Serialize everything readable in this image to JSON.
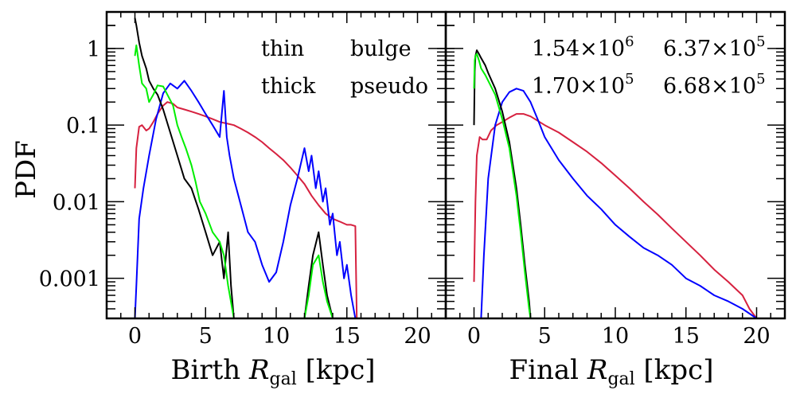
{
  "figure": {
    "ylabel": "PDF",
    "yscale": "log",
    "ylim": [
      0.0003,
      3.0
    ],
    "yticks": [
      1,
      0.1,
      0.01,
      0.001
    ],
    "ytick_labels": [
      "1",
      "0.1",
      "0.01",
      "0.001"
    ],
    "xlim": [
      -2,
      22
    ],
    "xticks": [
      0,
      5,
      10,
      15,
      20
    ],
    "xtick_labels": [
      "0",
      "5",
      "10",
      "15",
      "20"
    ]
  },
  "colors": {
    "thin": "#d6213f",
    "thick": "#0000ff",
    "bulge": "#000000",
    "pseudo": "#00ee00"
  },
  "chart_data": [
    {
      "type": "line",
      "panel": "left",
      "xlabel_main": "Birth ",
      "xlabel_var": "R",
      "xlabel_sub": "gal",
      "xlabel_unit": " [kpc]",
      "xlim": [
        -2,
        22
      ],
      "ylim": [
        0.0003,
        3.0
      ],
      "yscale": "log",
      "legend": [
        {
          "name": "thin",
          "color_key": "thin",
          "pos": "top-left"
        },
        {
          "name": "bulge",
          "color_key": "bulge",
          "pos": "top-right"
        },
        {
          "name": "thick",
          "color_key": "thick",
          "pos": "bottom-left"
        },
        {
          "name": "pseudo",
          "color_key": "pseudo",
          "pos": "bottom-right"
        }
      ],
      "series": [
        {
          "name": "thin",
          "color_key": "thin",
          "x": [
            0.0,
            0.1,
            0.3,
            0.5,
            0.8,
            1.0,
            1.3,
            1.6,
            2.0,
            2.3,
            2.7,
            3.0,
            3.5,
            4.0,
            4.5,
            5.0,
            5.5,
            6.0,
            6.5,
            7.0,
            7.5,
            8.0,
            8.5,
            9.0,
            9.5,
            10.0,
            10.5,
            11.0,
            11.5,
            12.0,
            12.5,
            13.0,
            13.5,
            14.0,
            14.5,
            15.0,
            15.3,
            15.6,
            15.7
          ],
          "y": [
            0.015,
            0.05,
            0.095,
            0.1,
            0.085,
            0.09,
            0.11,
            0.14,
            0.18,
            0.2,
            0.19,
            0.17,
            0.16,
            0.15,
            0.14,
            0.13,
            0.12,
            0.11,
            0.105,
            0.1,
            0.09,
            0.08,
            0.07,
            0.06,
            0.05,
            0.042,
            0.035,
            0.028,
            0.022,
            0.017,
            0.012,
            0.009,
            0.007,
            0.006,
            0.0055,
            0.005,
            0.005,
            0.0048,
            0.0003
          ]
        },
        {
          "name": "thick",
          "color_key": "thick",
          "x": [
            0.0,
            0.1,
            0.3,
            0.6,
            1.0,
            1.5,
            2.0,
            2.5,
            3.0,
            3.5,
            4.0,
            4.5,
            5.0,
            5.5,
            6.0,
            6.3,
            6.5,
            6.7,
            7.0,
            7.5,
            8.0,
            8.5,
            9.0,
            9.5,
            10.0,
            10.5,
            11.0,
            11.5,
            12.0,
            12.3,
            12.5,
            12.8,
            13.0,
            13.3,
            13.5,
            13.8,
            14.0,
            14.3,
            14.5,
            14.8,
            15.0,
            15.3,
            15.6
          ],
          "y": [
            0.0003,
            0.0008,
            0.006,
            0.015,
            0.04,
            0.12,
            0.26,
            0.35,
            0.3,
            0.38,
            0.28,
            0.2,
            0.14,
            0.1,
            0.07,
            0.28,
            0.07,
            0.04,
            0.02,
            0.009,
            0.004,
            0.003,
            0.0015,
            0.0009,
            0.0012,
            0.003,
            0.009,
            0.02,
            0.05,
            0.025,
            0.04,
            0.015,
            0.025,
            0.01,
            0.015,
            0.005,
            0.007,
            0.002,
            0.003,
            0.001,
            0.0015,
            0.0006,
            0.0003
          ]
        },
        {
          "name": "bulge",
          "color_key": "bulge",
          "x": [
            0.0,
            0.1,
            0.3,
            0.5,
            0.8,
            1.0,
            1.3,
            1.6,
            2.0,
            2.5,
            3.0,
            3.5,
            4.0,
            4.5,
            5.0,
            5.5,
            6.0,
            6.3,
            6.6,
            6.8,
            7.0,
            12.0,
            12.3,
            12.6,
            13.0,
            13.3,
            13.6,
            14.0
          ],
          "y": [
            2.5,
            2.0,
            1.2,
            0.8,
            0.55,
            0.38,
            0.3,
            0.25,
            0.16,
            0.08,
            0.04,
            0.02,
            0.015,
            0.008,
            0.004,
            0.002,
            0.003,
            0.001,
            0.004,
            0.0008,
            0.0003,
            0.0003,
            0.0008,
            0.002,
            0.004,
            0.0015,
            0.0006,
            0.0003
          ]
        },
        {
          "name": "pseudo",
          "color_key": "pseudo",
          "x": [
            0.0,
            0.1,
            0.3,
            0.5,
            0.8,
            1.0,
            1.3,
            1.6,
            2.0,
            2.3,
            2.7,
            3.0,
            3.3,
            3.6,
            4.0,
            4.3,
            4.6,
            5.0,
            5.5,
            6.0,
            6.3,
            6.6,
            7.0,
            12.0,
            12.3,
            12.6,
            13.0,
            13.3,
            13.6,
            14.0
          ],
          "y": [
            0.8,
            1.1,
            0.6,
            0.35,
            0.3,
            0.2,
            0.25,
            0.33,
            0.32,
            0.25,
            0.18,
            0.1,
            0.07,
            0.05,
            0.03,
            0.018,
            0.01,
            0.007,
            0.004,
            0.003,
            0.002,
            0.0008,
            0.0003,
            0.0003,
            0.0006,
            0.0015,
            0.002,
            0.0009,
            0.0005,
            0.0003
          ]
        }
      ]
    },
    {
      "type": "line",
      "panel": "right",
      "xlabel_main": "Final ",
      "xlabel_var": "R",
      "xlabel_sub": "gal",
      "xlabel_unit": " [kpc]",
      "xlim": [
        -2,
        22
      ],
      "ylim": [
        0.0003,
        3.0
      ],
      "yscale": "log",
      "legend": [
        {
          "mant": "1.54×10",
          "exp": "6",
          "color_key": "thin",
          "pos": "top-left"
        },
        {
          "mant": "6.37×10",
          "exp": "5",
          "color_key": "bulge",
          "pos": "top-right"
        },
        {
          "mant": "1.70×10",
          "exp": "5",
          "color_key": "thick",
          "pos": "bottom-left"
        },
        {
          "mant": "6.68×10",
          "exp": "5",
          "color_key": "pseudo",
          "pos": "bottom-right"
        }
      ],
      "series": [
        {
          "name": "thin",
          "color_key": "thin",
          "x": [
            0.0,
            0.1,
            0.2,
            0.4,
            0.6,
            0.9,
            1.2,
            1.6,
            2.0,
            2.5,
            3.0,
            3.5,
            4.0,
            5.0,
            6.0,
            7.0,
            8.0,
            9.0,
            10.0,
            11.0,
            12.0,
            13.0,
            14.0,
            15.0,
            16.0,
            17.0,
            18.0,
            19.0,
            19.5,
            20.0
          ],
          "y": [
            0.0009,
            0.01,
            0.04,
            0.07,
            0.065,
            0.065,
            0.085,
            0.1,
            0.11,
            0.125,
            0.14,
            0.14,
            0.13,
            0.1,
            0.08,
            0.06,
            0.045,
            0.032,
            0.022,
            0.015,
            0.01,
            0.0068,
            0.0045,
            0.003,
            0.002,
            0.0013,
            0.0009,
            0.0006,
            0.0004,
            0.0003
          ]
        },
        {
          "name": "thick",
          "color_key": "thick",
          "x": [
            0.5,
            0.7,
            1.0,
            1.5,
            2.0,
            2.5,
            3.0,
            3.5,
            4.0,
            4.5,
            5.0,
            6.0,
            7.0,
            8.0,
            9.0,
            10.0,
            11.0,
            12.0,
            13.0,
            14.0,
            15.0,
            16.0,
            17.0,
            18.0,
            19.0,
            20.0
          ],
          "y": [
            0.0003,
            0.002,
            0.02,
            0.1,
            0.2,
            0.27,
            0.3,
            0.28,
            0.2,
            0.12,
            0.07,
            0.035,
            0.02,
            0.012,
            0.008,
            0.005,
            0.0035,
            0.0025,
            0.002,
            0.0015,
            0.001,
            0.0008,
            0.0006,
            0.0005,
            0.0004,
            0.0003
          ]
        },
        {
          "name": "bulge",
          "color_key": "bulge",
          "x": [
            0.0,
            0.05,
            0.1,
            0.2,
            0.35,
            0.5,
            0.8,
            1.0,
            1.5,
            2.0,
            2.5,
            3.0,
            3.3,
            3.6,
            3.9,
            4.0
          ],
          "y": [
            0.1,
            0.5,
            0.8,
            0.95,
            0.85,
            0.75,
            0.6,
            0.48,
            0.3,
            0.15,
            0.06,
            0.015,
            0.005,
            0.0015,
            0.0005,
            0.0003
          ]
        },
        {
          "name": "pseudo",
          "color_key": "pseudo",
          "x": [
            0.0,
            0.05,
            0.1,
            0.2,
            0.35,
            0.5,
            0.8,
            1.0,
            1.5,
            2.0,
            2.5,
            3.0,
            3.3,
            3.6,
            3.9,
            4.0
          ],
          "y": [
            0.3,
            0.7,
            0.8,
            0.85,
            0.7,
            0.55,
            0.45,
            0.38,
            0.25,
            0.12,
            0.05,
            0.012,
            0.004,
            0.0012,
            0.0004,
            0.0003
          ]
        }
      ]
    }
  ]
}
